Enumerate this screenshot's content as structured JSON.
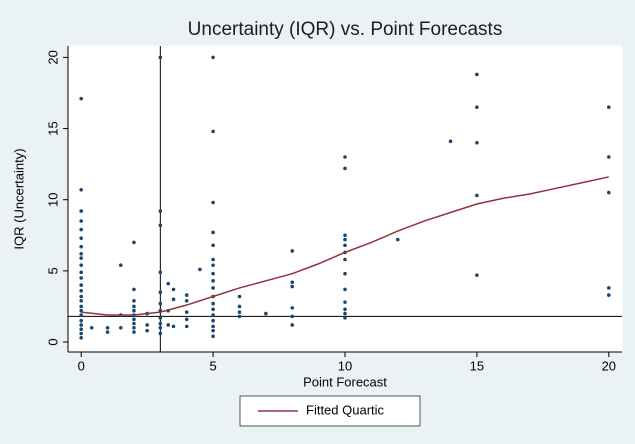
{
  "chart_data": {
    "type": "scatter",
    "title": "Uncertainty (IQR) vs. Point Forecasts",
    "x_label": "Point Forecast",
    "y_label": "IQR (Uncertainty)",
    "xlim": [
      -0.5,
      20.5
    ],
    "ylim": [
      -0.7,
      20.8
    ],
    "xticks": [
      0,
      5,
      10,
      15,
      20
    ],
    "yticks": [
      0,
      5,
      10,
      15,
      20
    ],
    "reference_lines": {
      "x": 3,
      "y": 1.8
    },
    "series": [
      {
        "type": "scatter",
        "color": "#1a476f",
        "x": [
          0,
          0,
          0,
          0,
          0,
          0,
          0,
          0,
          0,
          0,
          0,
          0,
          0,
          0,
          0,
          0,
          0,
          0,
          0,
          0,
          0,
          0,
          0,
          0,
          0.4,
          1,
          1,
          1.5,
          1.5,
          1.5,
          2,
          2,
          2,
          2,
          2,
          2,
          2,
          2,
          2,
          2,
          2.5,
          2.5,
          2.5,
          3,
          3,
          3,
          3,
          3,
          3,
          3,
          3,
          3,
          3,
          3,
          3.3,
          3.3,
          3.3,
          3.5,
          3.5,
          3.5,
          4,
          4,
          4,
          4,
          4,
          4.5,
          5,
          5,
          5,
          5,
          5,
          5,
          5,
          5,
          5,
          5,
          5,
          5,
          5,
          5,
          5,
          5,
          5,
          5,
          6,
          6,
          6,
          6,
          7,
          8,
          8,
          8,
          8,
          8,
          8,
          10,
          10,
          10,
          10,
          10,
          10,
          10,
          10,
          10,
          10,
          10,
          10,
          10,
          12,
          14,
          15,
          15,
          15,
          15,
          15,
          20,
          20,
          20,
          20,
          20
        ],
        "values": [
          17.1,
          10.7,
          9.2,
          8.5,
          7.9,
          7.3,
          6.7,
          6.2,
          5.9,
          5.4,
          4.9,
          4.5,
          4,
          3.6,
          3.2,
          2.9,
          2.5,
          2.2,
          1.9,
          1.5,
          1.2,
          0.9,
          0.6,
          0.3,
          1,
          0.7,
          1,
          5.4,
          1.9,
          1,
          7,
          3.7,
          2.9,
          2.5,
          2.2,
          1.9,
          1.6,
          1.3,
          1,
          0.7,
          2,
          1.2,
          0.8,
          20,
          9.2,
          8.2,
          4.9,
          3.5,
          2.7,
          2.2,
          1.7,
          1.3,
          1,
          0.6,
          4.1,
          2.2,
          1.2,
          3.7,
          3,
          1.1,
          3.3,
          2.9,
          2.1,
          1.6,
          1.1,
          5.1,
          20,
          14.8,
          9.8,
          7.7,
          6.8,
          5.8,
          5.4,
          4.8,
          4.3,
          3.8,
          3.2,
          2.7,
          2.3,
          1.9,
          1.5,
          1.1,
          0.8,
          0.4,
          3.2,
          2.5,
          2.1,
          1.8,
          2,
          6.4,
          4.2,
          3.9,
          2.4,
          1.8,
          1.2,
          13,
          12.2,
          7.5,
          7.2,
          6.8,
          6.3,
          5.8,
          4.8,
          3.7,
          2.8,
          2.3,
          2,
          1.7,
          7.2,
          14.1,
          18.8,
          16.5,
          14,
          10.3,
          4.7,
          16.5,
          13,
          10.5,
          3.8,
          3.3
        ]
      },
      {
        "type": "line",
        "name": "Fitted Quartic",
        "color": "#90353b",
        "x": [
          0,
          1,
          2,
          3,
          4,
          5,
          6,
          7,
          8,
          9,
          10,
          11,
          12,
          13,
          14,
          15,
          16,
          17,
          18,
          19,
          20
        ],
        "values": [
          2.1,
          1.9,
          1.9,
          2.1,
          2.6,
          3.2,
          3.8,
          4.3,
          4.8,
          5.5,
          6.3,
          7,
          7.8,
          8.5,
          9.1,
          9.7,
          10.1,
          10.4,
          10.8,
          11.2,
          11.6
        ]
      }
    ]
  }
}
